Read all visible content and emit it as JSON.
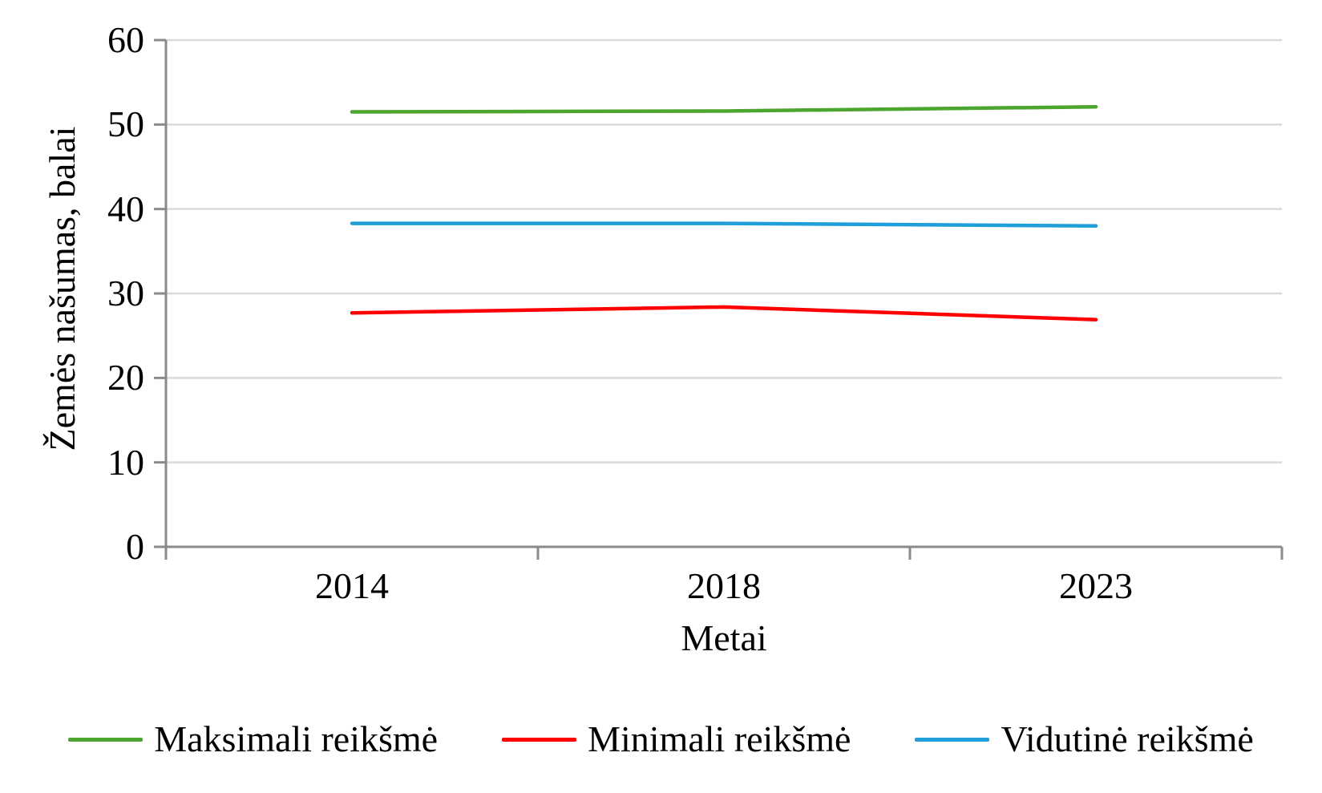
{
  "chart_data": {
    "type": "line",
    "categories": [
      "2014",
      "2018",
      "2023"
    ],
    "series": [
      {
        "name": "Maksimali reikšmė",
        "color": "#4CA52E",
        "values": [
          51.5,
          51.6,
          52.1
        ]
      },
      {
        "name": "Minimali reikšmė",
        "color": "#FE0000",
        "values": [
          27.7,
          28.4,
          26.9
        ]
      },
      {
        "name": "Vidutinė reikšmė",
        "color": "#1F9ED9",
        "values": [
          38.3,
          38.3,
          38.0
        ]
      }
    ],
    "xlabel": "Metai",
    "ylabel": "Žemės našumas, balai",
    "ylim": [
      0,
      60
    ],
    "ytick_step": 10,
    "y_tick_labels": [
      "0",
      "10",
      "20",
      "30",
      "40",
      "50",
      "60"
    ],
    "grid": "horizontal",
    "legend_position": "bottom",
    "grid_color": "#DADADA",
    "axis_color": "#8A8A8A",
    "text_color": "#000000"
  }
}
